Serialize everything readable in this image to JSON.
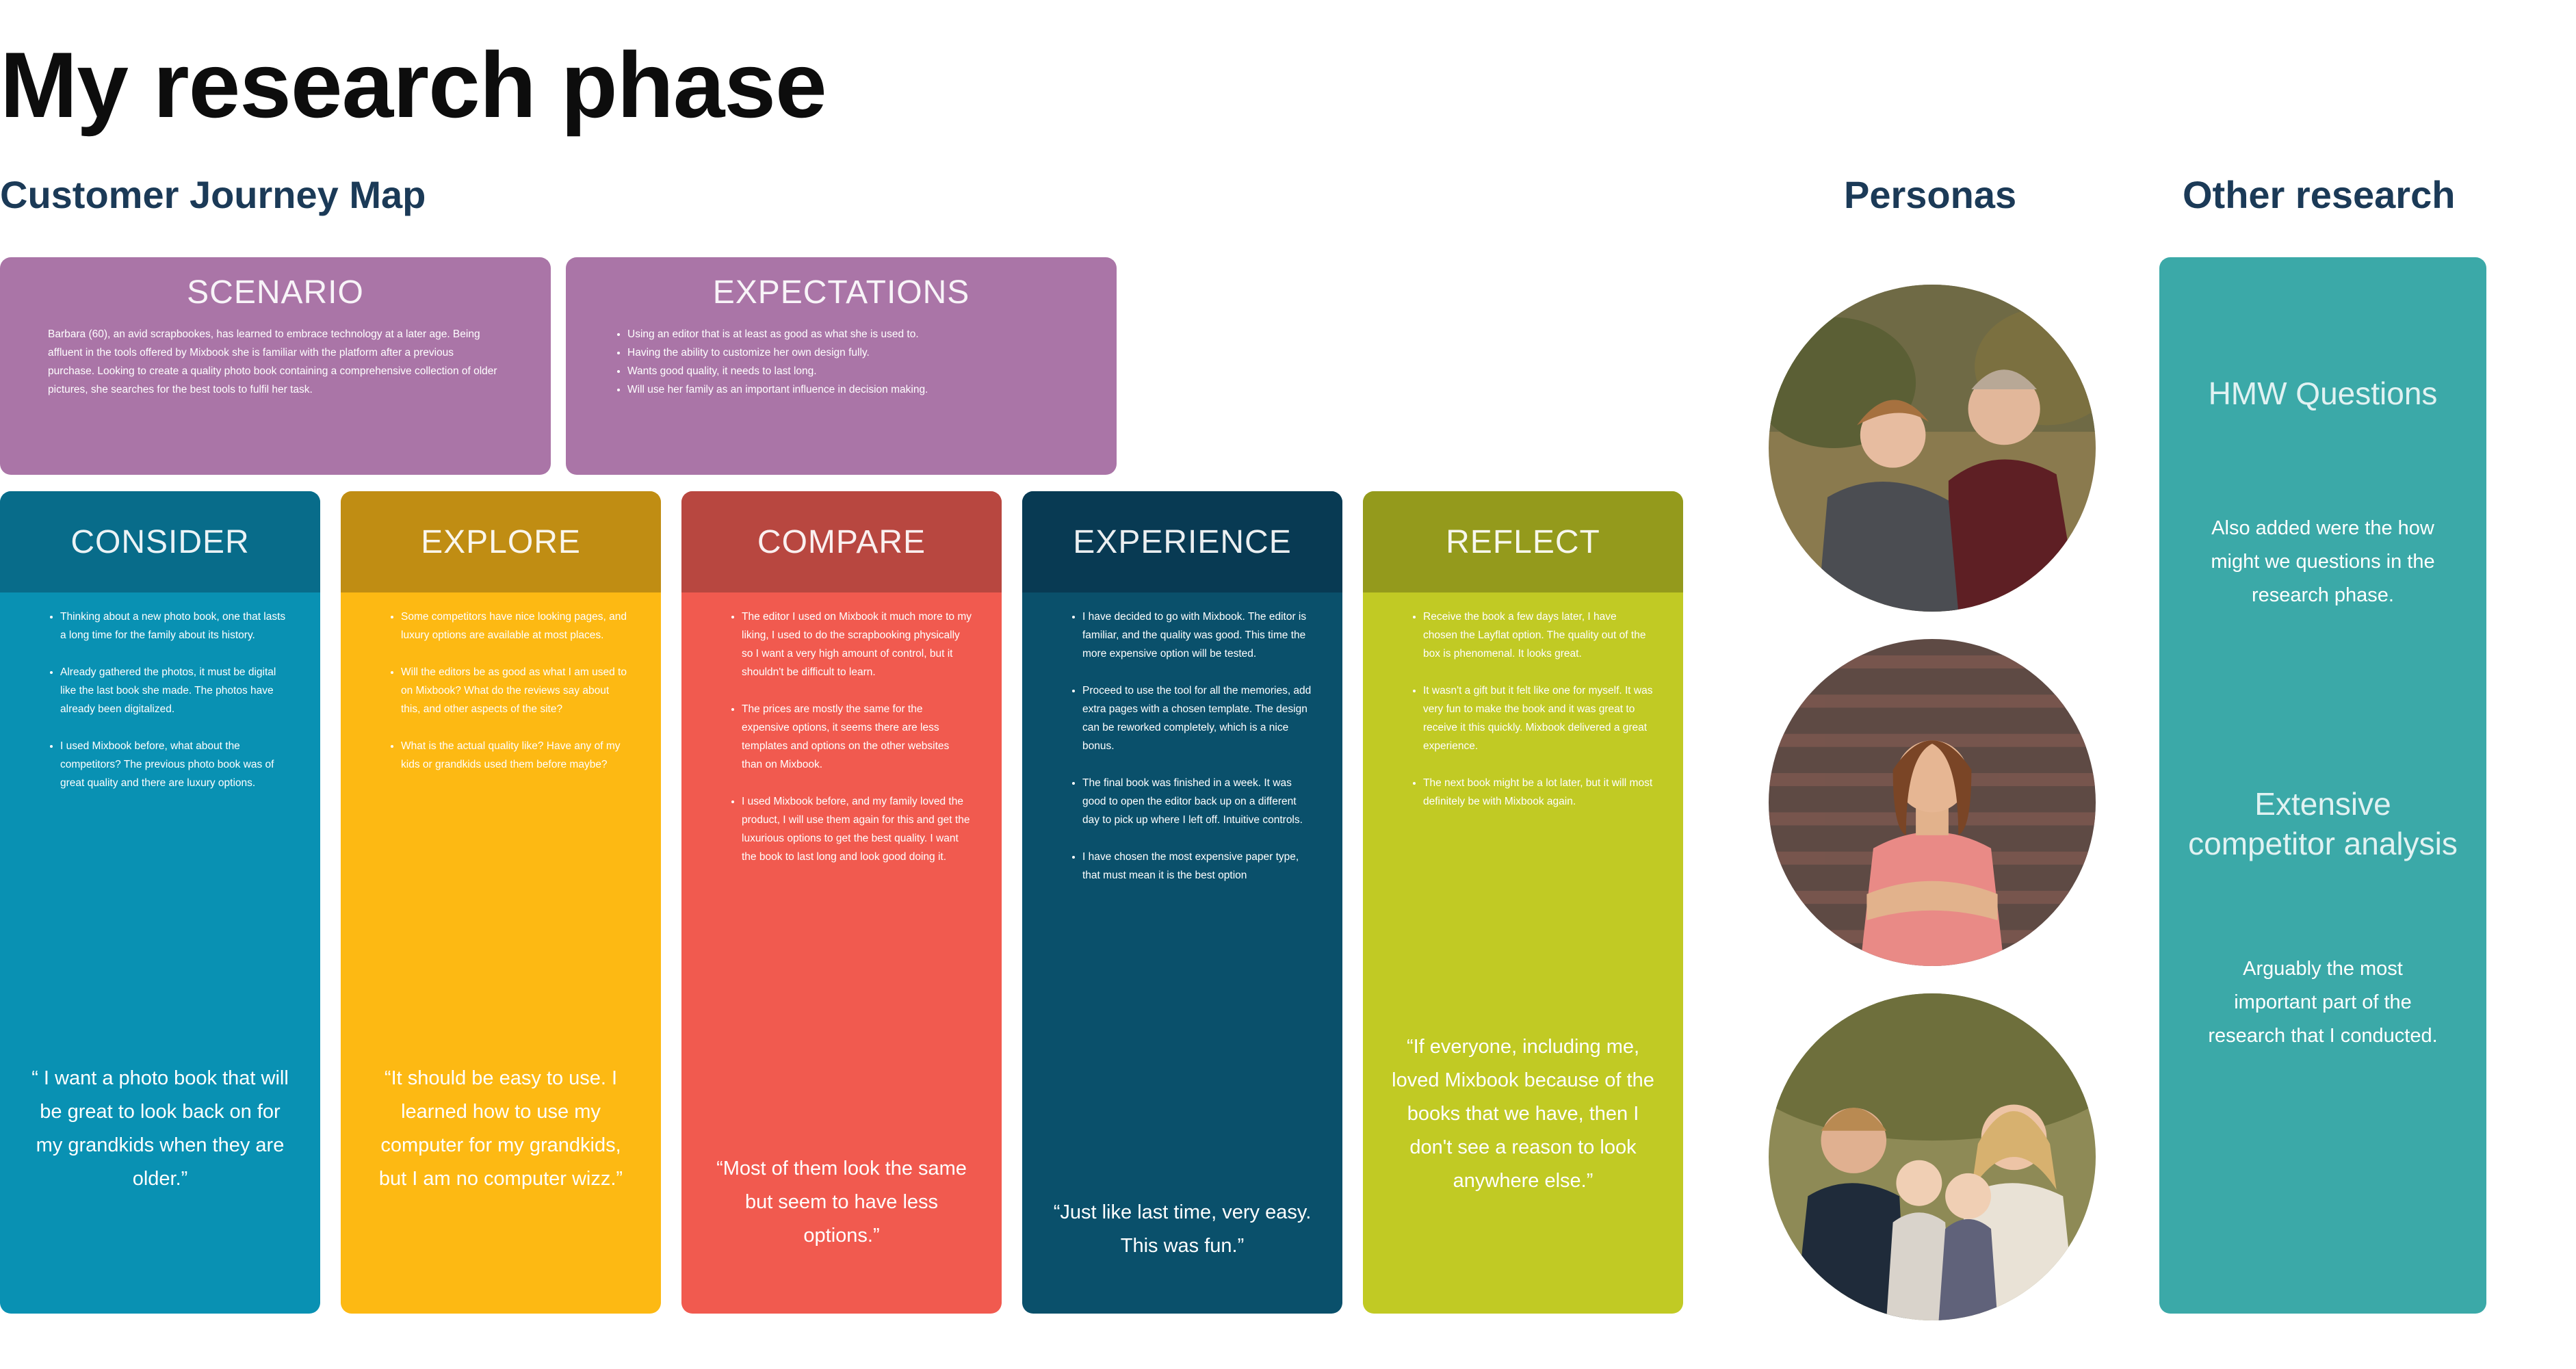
{
  "title": "My research phase",
  "sections": {
    "journey_map": "Customer Journey Map",
    "personas": "Personas",
    "other_research": "Other research"
  },
  "scenario": {
    "title": "SCENARIO",
    "text": "Barbara (60), an avid scrapbookes, has learned to embrace technology at a later age. Being affluent in the tools offered by Mixbook she is familiar with the platform after a previous purchase. Looking to create a quality photo book containing a comprehensive collection of older pictures, she searches for the best tools to fulfil her task."
  },
  "expectations": {
    "title": "EXPECTATIONS",
    "items": [
      "Using an editor that is at least as good as what she is used to.",
      "Having the ability to customize her own design fully.",
      "Wants good quality, it needs to last long.",
      "Will use her family as an important influence in decision making."
    ]
  },
  "stages": [
    {
      "title": "CONSIDER",
      "items": [
        "Thinking about a new photo book, one that lasts a long time for the family about its history.",
        "Already gathered the photos, it must be digital like the last book she made. The photos have already been digitalized.",
        "I used Mixbook before, what about the competitors? The previous photo book was of great quality and there are luxury options."
      ],
      "quote": "“ I want a photo book that will be great to look back on for my grandkids when they are older.”"
    },
    {
      "title": "EXPLORE",
      "items": [
        "Some competitors have nice looking pages, and luxury options are available at most places.",
        "Will the editors be as good as what I am used to on Mixbook? What do the reviews say about this, and other aspects of the site?",
        "What is the actual quality like? Have any of my kids or grandkids used them before maybe?"
      ],
      "quote": "“It should be easy to use. I learned how to use my computer for my grandkids, but I am no computer wizz.”"
    },
    {
      "title": "COMPARE",
      "items": [
        "The editor I used on Mixbook it much more to my liking, I used to do the scrapbooking physically so I want a very high amount of control, but it shouldn't be difficult to learn.",
        "The prices are mostly the same for the expensive options, it seems there are less templates and options on the other websites than on Mixbook.",
        "I used Mixbook before, and my family loved the product, I will use them again for this and get the luxurious options to get the best quality. I want the book to last long and look good doing it."
      ],
      "quote": "“Most of them look the same but seem to have less options.”"
    },
    {
      "title": "EXPERIENCE",
      "items": [
        "I have decided to go with Mixbook. The editor is familiar, and the quality was good. This time the more expensive option will be tested.",
        "Proceed to use the tool for all the memories, add extra pages with a chosen template. The design can be reworked completely, which is a nice bonus.",
        "The final book was finished in a week. It was good to open the editor back up on a different day to pick up where I left off. Intuitive controls.",
        "I have chosen the most expensive paper type, that must mean it is the best option"
      ],
      "quote": "“Just like last time, very easy. This was fun.”"
    },
    {
      "title": "REFLECT",
      "items": [
        "Receive the book a few days later, I have chosen the Layflat option. The quality out of the box is phenomenal. It looks great.",
        "It wasn't a gift but it felt like one for myself. It was very fun to make the book and it was great to receive it this quickly. Mixbook delivered a great experience.",
        "The next book might be a lot later, but it will most definitely be with Mixbook again."
      ],
      "quote": "“If everyone, including me, loved Mixbook because of the books that we have, then I don't see a reason to look anywhere else.”"
    }
  ],
  "other": {
    "hmw_title": "HMW Questions",
    "hmw_text": "Also added were the how might we questions in the research phase.",
    "competitor_title": "Extensive competitor analysis",
    "competitor_text": "Arguably the most important part of the research that I conducted."
  },
  "colors": {
    "heading": "#1b3a57",
    "purple": "#aa75a7",
    "teal_panel": "#3ba9a8",
    "consider": [
      "#086c8a",
      "#0991b3"
    ],
    "explore": [
      "#c08d13",
      "#fdb913"
    ],
    "compare": [
      "#b84740",
      "#f15a4f"
    ],
    "experience": [
      "#083a53",
      "#0a506b"
    ],
    "reflect": [
      "#949a1c",
      "#c1ca24"
    ]
  }
}
